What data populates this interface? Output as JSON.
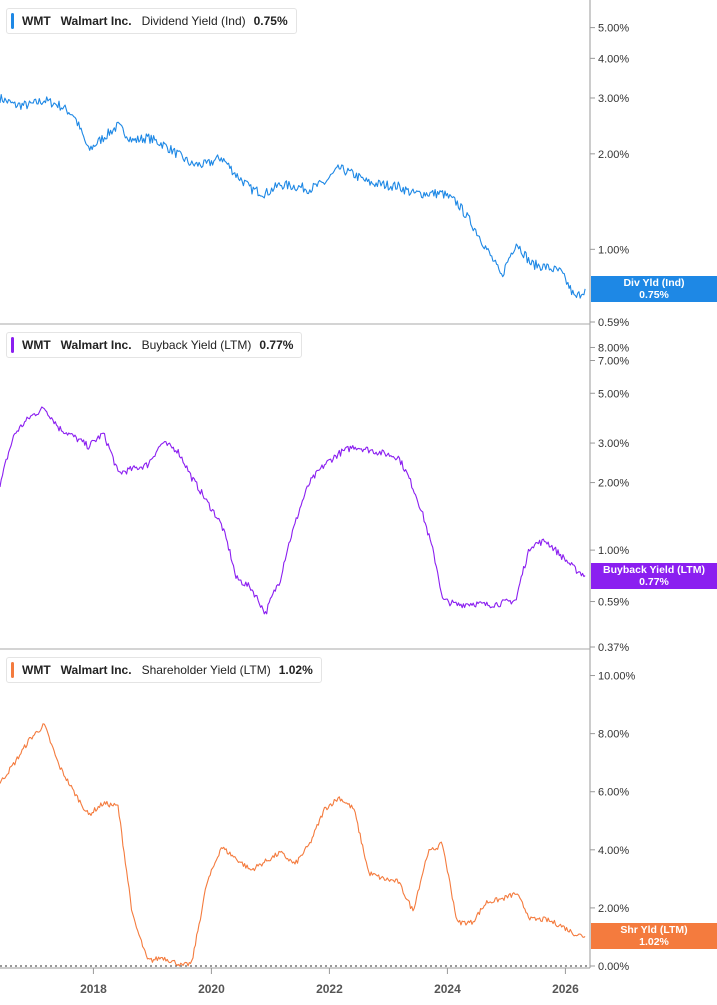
{
  "chart_data": [
    {
      "type": "line",
      "ticker": "WMT",
      "company": "Walmart Inc.",
      "metric": "Dividend Yield (Ind)",
      "current_value": "0.75%",
      "flag_label": "Div Yld (Ind)",
      "color": "#1e88e5",
      "scale": "log",
      "ylim": [
        0.59,
        5.6
      ],
      "y_ticks": [
        "5.00%",
        "4.00%",
        "3.00%",
        "2.00%",
        "1.00%",
        "0.59%"
      ],
      "y_tick_values": [
        5.0,
        4.0,
        3.0,
        2.0,
        1.0,
        0.59
      ],
      "x": [
        "2016-06",
        "2016-09",
        "2016-12",
        "2017-03",
        "2017-06",
        "2017-09",
        "2017-12",
        "2018-03",
        "2018-06",
        "2018-09",
        "2018-12",
        "2019-03",
        "2019-06",
        "2019-09",
        "2019-12",
        "2020-03",
        "2020-06",
        "2020-09",
        "2020-12",
        "2021-03",
        "2021-06",
        "2021-09",
        "2021-12",
        "2022-03",
        "2022-06",
        "2022-09",
        "2022-12",
        "2023-03",
        "2023-06",
        "2023-09",
        "2023-12",
        "2024-03",
        "2024-06",
        "2024-09",
        "2024-12",
        "2025-03",
        "2025-06",
        "2025-09",
        "2025-12",
        "2026-03",
        "2026-05"
      ],
      "values": [
        3.0,
        2.85,
        2.85,
        2.95,
        2.85,
        2.65,
        2.05,
        2.25,
        2.45,
        2.2,
        2.25,
        2.15,
        2.0,
        1.85,
        1.85,
        1.95,
        1.72,
        1.55,
        1.5,
        1.6,
        1.58,
        1.55,
        1.62,
        1.8,
        1.72,
        1.62,
        1.6,
        1.58,
        1.5,
        1.5,
        1.5,
        1.4,
        1.2,
        1.0,
        0.82,
        1.05,
        0.9,
        0.88,
        0.85,
        0.7,
        0.75
      ]
    },
    {
      "type": "line",
      "ticker": "WMT",
      "company": "Walmart Inc.",
      "metric": "Buyback Yield (LTM)",
      "current_value": "0.77%",
      "flag_label": "Buyback Yield (LTM)",
      "color": "#8b1ff0",
      "scale": "log",
      "ylim": [
        0.37,
        9.0
      ],
      "y_ticks": [
        "8.00%",
        "7.00%",
        "5.00%",
        "3.00%",
        "2.00%",
        "1.00%",
        "0.59%",
        "0.37%"
      ],
      "y_tick_values": [
        8.0,
        7.0,
        5.0,
        3.0,
        2.0,
        1.0,
        0.59,
        0.37
      ],
      "x": [
        "2016-06",
        "2016-09",
        "2016-12",
        "2017-03",
        "2017-06",
        "2017-09",
        "2017-12",
        "2018-03",
        "2018-06",
        "2018-09",
        "2018-12",
        "2019-03",
        "2019-06",
        "2019-09",
        "2019-12",
        "2020-03",
        "2020-06",
        "2020-09",
        "2020-12",
        "2021-03",
        "2021-06",
        "2021-09",
        "2021-12",
        "2022-03",
        "2022-06",
        "2022-09",
        "2022-12",
        "2023-03",
        "2023-06",
        "2023-09",
        "2023-12",
        "2024-03",
        "2024-06",
        "2024-09",
        "2024-12",
        "2025-03",
        "2025-06",
        "2025-09",
        "2025-12",
        "2026-03",
        "2026-05"
      ],
      "values": [
        1.9,
        3.3,
        3.9,
        4.3,
        3.5,
        3.2,
        2.9,
        3.3,
        2.2,
        2.3,
        2.4,
        3.0,
        2.8,
        2.1,
        1.65,
        1.3,
        0.75,
        0.68,
        0.52,
        0.74,
        1.3,
        2.0,
        2.4,
        2.7,
        2.9,
        2.8,
        2.7,
        2.6,
        1.9,
        1.2,
        0.6,
        0.57,
        0.58,
        0.57,
        0.58,
        0.6,
        1.05,
        1.1,
        0.95,
        0.82,
        0.77
      ]
    },
    {
      "type": "line",
      "ticker": "WMT",
      "company": "Walmart Inc.",
      "metric": "Shareholder Yield (LTM)",
      "current_value": "1.02%",
      "flag_label": "Shr Yld (LTM)",
      "color": "#f47b3e",
      "scale": "linear",
      "ylim": [
        0.0,
        10.5
      ],
      "y_ticks": [
        "10.00%",
        "8.00%",
        "6.00%",
        "4.00%",
        "2.00%",
        "0.00%"
      ],
      "y_tick_values": [
        10.0,
        8.0,
        6.0,
        4.0,
        2.0,
        0.0
      ],
      "zero_line": true,
      "x": [
        "2016-06",
        "2016-09",
        "2016-12",
        "2017-03",
        "2017-06",
        "2017-09",
        "2017-12",
        "2018-03",
        "2018-06",
        "2018-09",
        "2018-12",
        "2019-01",
        "2019-03",
        "2019-06",
        "2019-07",
        "2019-09",
        "2019-12",
        "2020-03",
        "2020-06",
        "2020-09",
        "2020-12",
        "2021-03",
        "2021-06",
        "2021-09",
        "2021-12",
        "2022-03",
        "2022-06",
        "2022-09",
        "2022-12",
        "2023-03",
        "2023-06",
        "2023-09",
        "2023-12",
        "2024-03",
        "2024-06",
        "2024-09",
        "2024-12",
        "2025-03",
        "2025-06",
        "2025-09",
        "2025-12",
        "2026-03",
        "2026-05"
      ],
      "values": [
        6.3,
        7.0,
        7.8,
        8.3,
        6.9,
        6.0,
        5.2,
        5.6,
        5.5,
        1.7,
        0.2,
        0.2,
        0.3,
        0.1,
        0.0,
        0.1,
        2.8,
        4.1,
        3.7,
        3.3,
        3.6,
        3.9,
        3.5,
        4.2,
        5.4,
        5.8,
        5.4,
        3.2,
        3.0,
        2.9,
        1.9,
        3.9,
        4.2,
        1.5,
        1.5,
        2.2,
        2.3,
        2.5,
        1.6,
        1.6,
        1.4,
        1.1,
        1.02
      ]
    }
  ],
  "x_axis": {
    "ticks": [
      "2018",
      "2020",
      "2022",
      "2024",
      "2026"
    ],
    "domain": [
      "2016-06",
      "2026-06"
    ]
  }
}
